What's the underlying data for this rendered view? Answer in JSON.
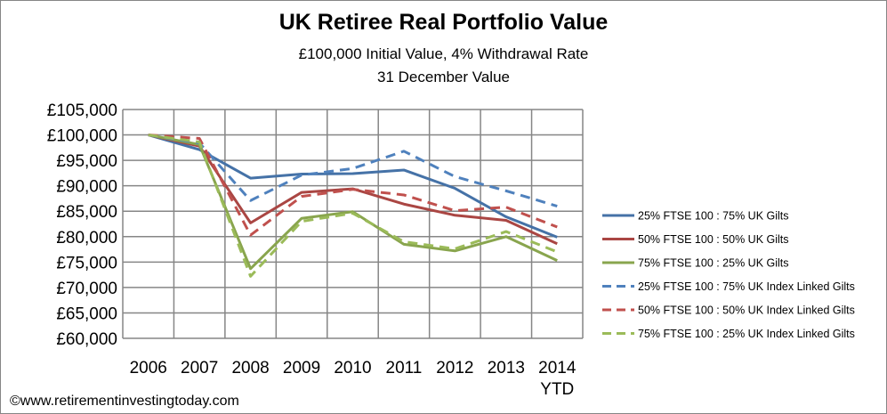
{
  "chart_data": {
    "type": "line",
    "title": "UK Retiree Real Portfolio Value",
    "subtitle": [
      "£100,000 Initial Value, 4% Withdrawal Rate",
      "31 December  Value"
    ],
    "categories": [
      "2006",
      "2007",
      "2008",
      "2009",
      "2010",
      "2011",
      "2012",
      "2013",
      "2014 YTD"
    ],
    "ylim": [
      60000,
      105000
    ],
    "yticks": [
      "£105,000",
      "£100,000",
      "£95,000",
      "£90,000",
      "£85,000",
      "£80,000",
      "£75,000",
      "£70,000",
      "£65,000",
      "£60,000"
    ],
    "grid": true,
    "legend_position": "right",
    "series": [
      {
        "name": "25% FTSE 100 : 75% UK Gilts",
        "color": "#4572A7",
        "dash": false,
        "values": [
          100000,
          97100,
          91500,
          92300,
          92400,
          93100,
          89500,
          83900,
          79900
        ]
      },
      {
        "name": "50% FTSE 100 : 50% UK Gilts",
        "color": "#AA4643",
        "dash": false,
        "values": [
          100000,
          97800,
          82700,
          88700,
          89400,
          86400,
          84200,
          83200,
          78600
        ]
      },
      {
        "name": "75% FTSE 100 : 25% UK Gilts",
        "color": "#89A54E",
        "dash": false,
        "values": [
          100000,
          98100,
          73700,
          83600,
          84900,
          78500,
          77200,
          80000,
          75300
        ]
      },
      {
        "name": "25% FTSE 100 : 75% UK Index Linked Gilts",
        "color": "#4F81BD",
        "dash": true,
        "values": [
          100000,
          98400,
          87100,
          92100,
          93400,
          96800,
          91800,
          89000,
          86000
        ]
      },
      {
        "name": "50% FTSE 100 : 50% UK Index Linked Gilts",
        "color": "#C0504D",
        "dash": true,
        "values": [
          100000,
          99300,
          80300,
          87900,
          89300,
          88200,
          85100,
          85800,
          81900
        ]
      },
      {
        "name": "75% FTSE 100 : 25% UK Index Linked Gilts",
        "color": "#9BBB59",
        "dash": true,
        "values": [
          100000,
          98600,
          72200,
          83000,
          84600,
          79000,
          77600,
          81000,
          77000
        ]
      }
    ]
  },
  "footer": {
    "credit": "©www.retirementinvestingtoday.com"
  }
}
